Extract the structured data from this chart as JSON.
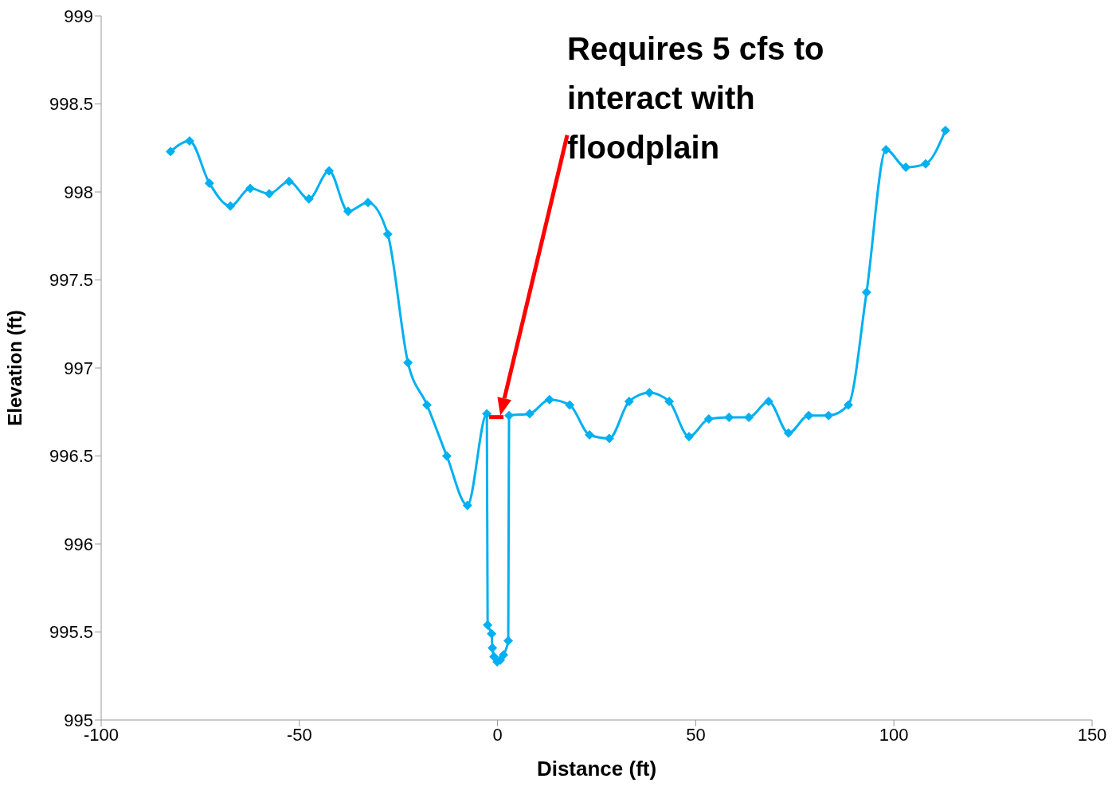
{
  "chart_data": {
    "type": "line",
    "xlabel": "Distance (ft)",
    "ylabel": "Elevation (ft)",
    "xlim": [
      -100,
      150
    ],
    "xticks": [
      -100,
      -50,
      0,
      50,
      100,
      150
    ],
    "ylim": [
      995,
      999
    ],
    "yticks": [
      995,
      995.5,
      996,
      996.5,
      997,
      997.5,
      998,
      998.5,
      999
    ],
    "marker": "diamond",
    "line_style": "solid",
    "series": [
      {
        "color": "#00b0f0",
        "x": [
          -82.5,
          -77.7,
          -72.7,
          -67.4,
          -62.4,
          -57.6,
          -52.6,
          -47.6,
          -42.5,
          -37.7,
          -32.7,
          -27.7,
          -22.6,
          -17.8,
          -12.8,
          -7.6,
          -2.7,
          -2.5,
          -1.5,
          -1.3,
          -0.9,
          -0.1,
          0.7,
          1.5,
          2.7,
          2.9,
          8.1,
          13.1,
          18.2,
          23.2,
          28.2,
          33.2,
          38.3,
          43.3,
          48.3,
          53.3,
          58.4,
          63.4,
          68.4,
          73.4,
          78.5,
          83.5,
          88.5,
          93.1,
          98.0,
          103.0,
          108.0,
          113.0
        ],
        "values": [
          998.23,
          998.29,
          998.05,
          997.92,
          998.02,
          997.99,
          998.06,
          997.96,
          998.12,
          997.89,
          997.94,
          997.76,
          997.03,
          996.79,
          996.5,
          996.22,
          996.74,
          995.54,
          995.49,
          995.41,
          995.36,
          995.33,
          995.34,
          995.37,
          995.45,
          996.73,
          996.74,
          996.82,
          996.79,
          996.62,
          996.6,
          996.81,
          996.86,
          996.81,
          996.61,
          996.71,
          996.72,
          996.72,
          996.81,
          996.63,
          996.73,
          996.73,
          996.79,
          997.43,
          998.24,
          998.14,
          998.16,
          998.35
        ]
      }
    ],
    "annotations": [
      "Requires 5 cfs to interact with floodplain"
    ]
  }
}
